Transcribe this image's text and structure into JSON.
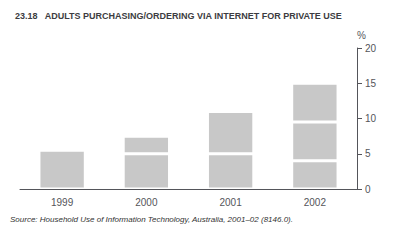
{
  "chart_data": {
    "type": "bar",
    "title": "23.18   ADULTS PURCHASING/ORDERING VIA INTERNET FOR PRIVATE USE",
    "categories": [
      "1999",
      "2000",
      "2001",
      "2002"
    ],
    "series": [
      {
        "values": [
          5.5,
          5.0,
          5.0,
          4.0
        ]
      },
      {
        "values": [
          0,
          2.5,
          6.0,
          5.5
        ]
      },
      {
        "values": [
          0,
          0,
          0,
          5.5
        ]
      }
    ],
    "stacked": true,
    "color": "#c8c8c8",
    "ylabel": "%",
    "ylim": [
      0,
      20
    ],
    "yticks": [
      0,
      5,
      10,
      15,
      20
    ],
    "grid": false,
    "annotations": [
      "Source: Household Use of Information Technology, Australia, 2001–02 (8146.0)."
    ]
  }
}
